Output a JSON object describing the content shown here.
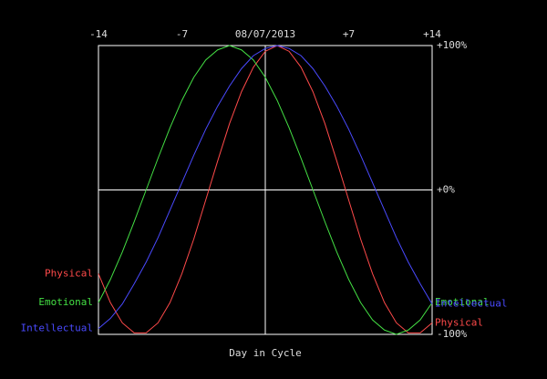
{
  "chart_data": {
    "type": "line",
    "x_label": "Day in Cycle",
    "x": [
      -14,
      -13,
      -12,
      -11,
      -10,
      -9,
      -8,
      -7,
      -6,
      -5,
      -4,
      -3,
      -2,
      -1,
      0,
      1,
      2,
      3,
      4,
      5,
      6,
      7,
      8,
      9,
      10,
      11,
      12,
      13,
      14
    ],
    "series": [
      {
        "name": "Physical",
        "color": "#ff4a4a",
        "values": [
          -58,
          -78,
          -92,
          -99,
          -99,
          -92,
          -78,
          -58,
          -34,
          -7,
          20,
          46,
          68,
          85,
          96,
          100,
          96,
          85,
          68,
          46,
          20,
          -7,
          -34,
          -58,
          -78,
          -92,
          -99,
          -99,
          -92
        ]
      },
      {
        "name": "Emotional",
        "color": "#44e044",
        "values": [
          -78,
          -62,
          -43,
          -22,
          0,
          22,
          43,
          62,
          78,
          90,
          97,
          100,
          97,
          90,
          78,
          62,
          43,
          22,
          0,
          -22,
          -43,
          -62,
          -78,
          -90,
          -97,
          -100,
          -97,
          -90,
          -78
        ]
      },
      {
        "name": "Intellectual",
        "color": "#4a4aff",
        "values": [
          -96,
          -89,
          -79,
          -65,
          -50,
          -33,
          -14,
          5,
          24,
          42,
          58,
          72,
          84,
          93,
          98,
          100,
          98,
          93,
          84,
          72,
          58,
          42,
          24,
          5,
          -14,
          -33,
          -50,
          -65,
          -79
        ]
      }
    ],
    "xlim": [
      -14,
      14
    ],
    "xticks": [
      -14,
      {
        "value": -7,
        "label": "-7"
      },
      {
        "value": 0,
        "label": "08/07/2013"
      },
      {
        "value": 7,
        "label": "+7"
      },
      {
        "value": 14,
        "label": "+14"
      }
    ],
    "ylim": [
      -100,
      100
    ],
    "yticks": [
      {
        "value": 100,
        "label": "+100%"
      },
      {
        "value": 0,
        "label": "+0%"
      },
      {
        "value": -100,
        "label": "-100%"
      }
    ],
    "zero_lines": true
  }
}
